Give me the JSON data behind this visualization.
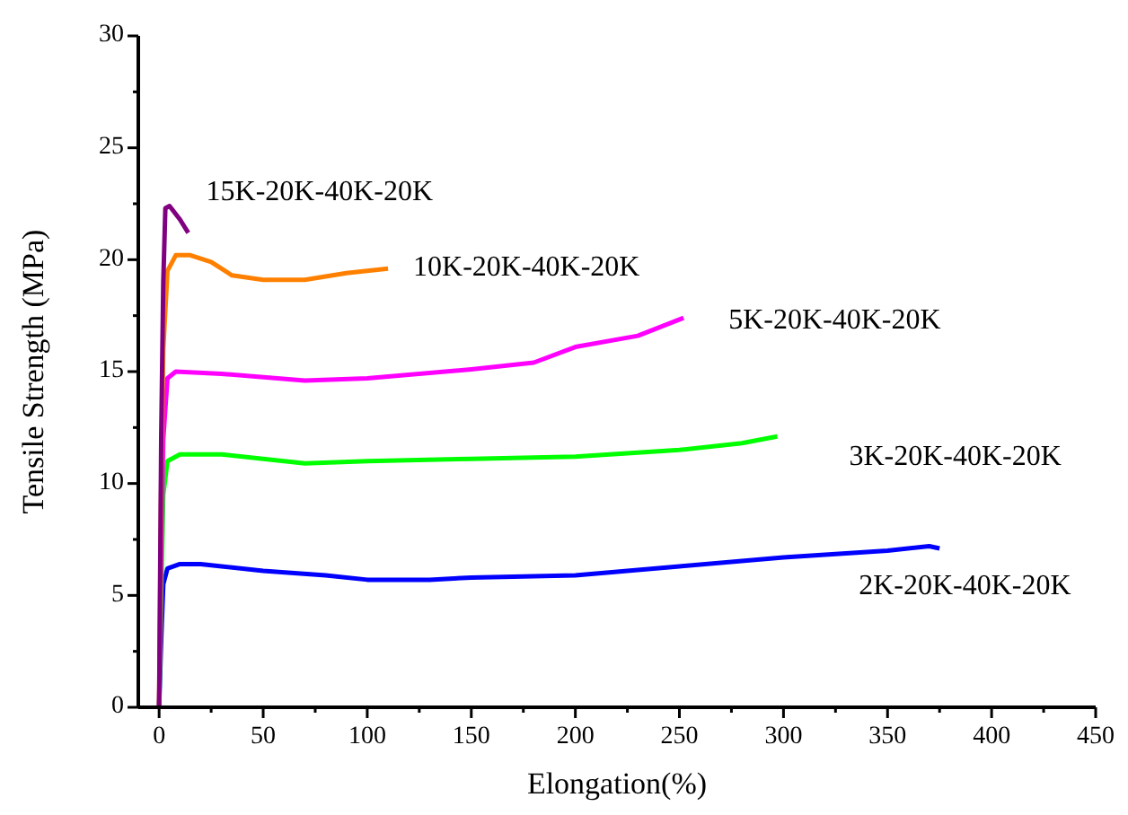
{
  "chart_data": {
    "type": "line",
    "xlabel": "Elongation(%)",
    "ylabel": "Tensile Strength (MPa)",
    "xlim": [
      -10,
      450
    ],
    "ylim": [
      0,
      30
    ],
    "xticks": [
      0,
      50,
      100,
      150,
      200,
      250,
      300,
      350,
      400,
      450
    ],
    "yticks": [
      0,
      5,
      10,
      15,
      20,
      25,
      30
    ],
    "grid": false,
    "line_style": "solid",
    "series": [
      {
        "name": "2K-20K-40K-20K",
        "color": "#0000ff",
        "x": [
          0,
          1,
          2,
          4,
          10,
          20,
          50,
          80,
          100,
          130,
          150,
          200,
          250,
          300,
          350,
          370,
          375
        ],
        "values": [
          0,
          3,
          5.5,
          6.2,
          6.4,
          6.4,
          6.1,
          5.9,
          5.7,
          5.7,
          5.8,
          5.9,
          6.3,
          6.7,
          7,
          7.2,
          7.1
        ]
      },
      {
        "name": "3K-20K-40K-20K",
        "color": "#00ff00",
        "x": [
          0,
          1,
          2,
          4,
          10,
          30,
          50,
          70,
          100,
          150,
          200,
          250,
          280,
          297
        ],
        "values": [
          0,
          5,
          9.5,
          11,
          11.3,
          11.3,
          11.1,
          10.9,
          11,
          11.1,
          11.2,
          11.5,
          11.8,
          12.1
        ]
      },
      {
        "name": "5K-20K-40K-20K",
        "color": "#ff00ff",
        "x": [
          0,
          1,
          2,
          4,
          8,
          30,
          70,
          100,
          150,
          180,
          200,
          230,
          252
        ],
        "values": [
          0,
          7,
          12,
          14.7,
          15,
          14.9,
          14.6,
          14.7,
          15.1,
          15.4,
          16.1,
          16.6,
          17.4
        ]
      },
      {
        "name": "10K-20K-40K-20K",
        "color": "#ff8000",
        "x": [
          0,
          1,
          2,
          4,
          8,
          15,
          25,
          35,
          50,
          70,
          90,
          110
        ],
        "values": [
          0,
          10,
          16,
          19.5,
          20.2,
          20.2,
          19.9,
          19.3,
          19.1,
          19.1,
          19.4,
          19.6
        ]
      },
      {
        "name": "15K-20K-40K-20K",
        "color": "#800080",
        "x": [
          0,
          1,
          2,
          3,
          5,
          10,
          14
        ],
        "values": [
          0,
          12,
          19,
          22.3,
          22.4,
          21.8,
          21.2
        ]
      }
    ]
  }
}
